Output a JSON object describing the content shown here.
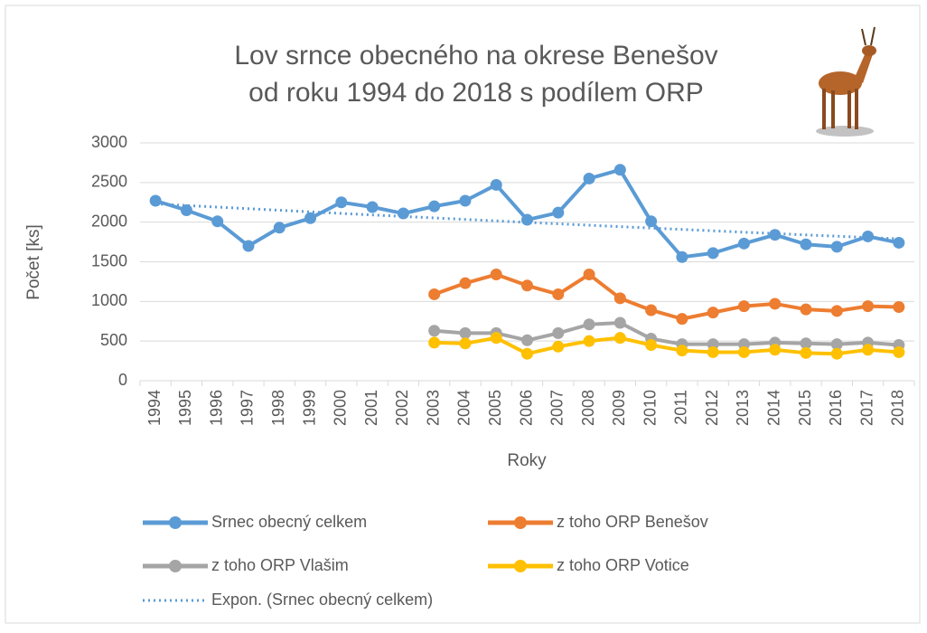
{
  "chart_data": {
    "type": "line",
    "title": "Lov srnce obecného na okrese Benešov",
    "subtitle": "od roku 1994 do 2018 s podílem  ORP",
    "x_label": "Roky",
    "y_label": "Počet [ks]",
    "categories": [
      "1994",
      "1995",
      "1996",
      "1997",
      "1998",
      "1999",
      "2000",
      "2001",
      "2002",
      "2003",
      "2004",
      "2005",
      "2006",
      "2007",
      "2008",
      "2009",
      "2010",
      "2011",
      "2012",
      "2013",
      "2014",
      "2015",
      "2016",
      "2017",
      "2018"
    ],
    "ylim": [
      0,
      3000
    ],
    "yticks": [
      0,
      500,
      1000,
      1500,
      2000,
      2500,
      3000
    ],
    "grid": true,
    "series": [
      {
        "name": "Srnec obecný celkem",
        "color": "#5b9bd5",
        "values": [
          2270,
          2150,
          2010,
          1700,
          1930,
          2050,
          2250,
          2190,
          2110,
          2200,
          2270,
          2470,
          2030,
          2120,
          2550,
          2660,
          2010,
          1560,
          1610,
          1730,
          1840,
          1720,
          1690,
          1820,
          1740
        ]
      },
      {
        "name": "z toho ORP Benešov",
        "color": "#ed7d31",
        "values": [
          null,
          null,
          null,
          null,
          null,
          null,
          null,
          null,
          null,
          1090,
          1230,
          1340,
          1200,
          1090,
          1340,
          1040,
          890,
          780,
          860,
          940,
          970,
          900,
          880,
          940,
          930
        ]
      },
      {
        "name": "z toho ORP Vlašim",
        "color": "#a5a5a5",
        "values": [
          null,
          null,
          null,
          null,
          null,
          null,
          null,
          null,
          null,
          630,
          600,
          600,
          510,
          600,
          710,
          730,
          530,
          460,
          460,
          460,
          480,
          470,
          460,
          480,
          450
        ]
      },
      {
        "name": "z toho ORP Votice",
        "color": "#ffc000",
        "values": [
          null,
          null,
          null,
          null,
          null,
          null,
          null,
          null,
          null,
          480,
          470,
          540,
          340,
          430,
          500,
          540,
          450,
          380,
          360,
          360,
          390,
          350,
          340,
          390,
          360
        ]
      },
      {
        "name": "Expon. (Srnec obecný celkem)",
        "color": "#5b9bd5",
        "dotted": true,
        "values": [
          2230,
          2210,
          2190,
          2170,
          2150,
          2130,
          2110,
          2091,
          2072,
          2053,
          2034,
          2016,
          1997,
          1979,
          1961,
          1943,
          1926,
          1908,
          1891,
          1873,
          1856,
          1839,
          1823,
          1806,
          1790
        ]
      }
    ]
  }
}
